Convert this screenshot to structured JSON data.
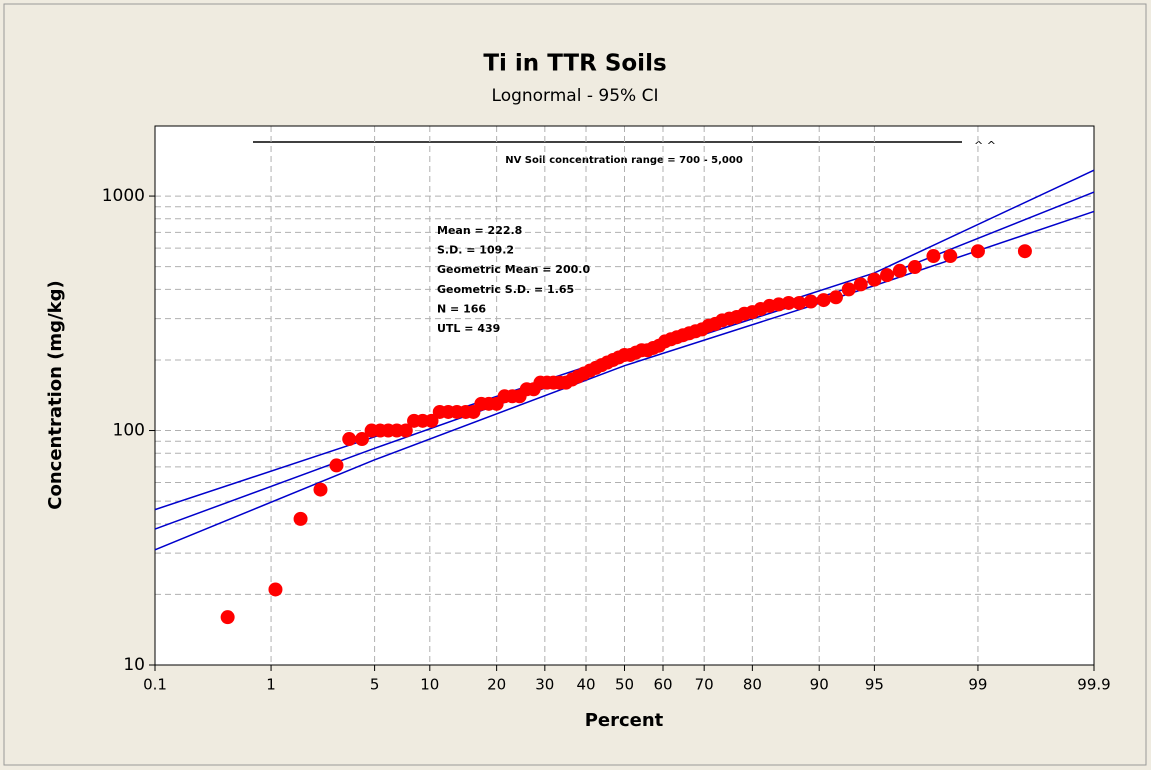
{
  "chart_data": {
    "type": "probability",
    "title": "Ti  in TTR Soils",
    "subtitle": "Lognormal - 95% CI",
    "x_label": "Percent",
    "y_label": "Concentration (mg/kg)",
    "xlim": [
      0.1,
      99.9
    ],
    "xticks": [
      0.1,
      1,
      5,
      10,
      20,
      30,
      40,
      50,
      60,
      70,
      80,
      90,
      95,
      99,
      99.9
    ],
    "ylim": [
      10,
      1990
    ],
    "log_y": true,
    "yticks": [
      10,
      100,
      1000
    ],
    "yminorticks": [
      20,
      30,
      40,
      50,
      60,
      70,
      80,
      90,
      200,
      300,
      400,
      500,
      600,
      700,
      800,
      900
    ],
    "grid": true,
    "points": {
      "color": "#ff0000",
      "x": [
        0.45,
        1.08,
        1.65,
        2.27,
        2.9,
        3.5,
        4.2,
        4.8,
        5.4,
        6.0,
        6.7,
        7.5,
        8.3,
        9.2,
        10.2,
        11.2,
        12.3,
        13.5,
        14.8,
        16.0,
        17.3,
        18.6,
        20.0,
        21.5,
        23.0,
        24.5,
        26.0,
        27.5,
        29.0,
        30.5,
        32.0,
        33.5,
        35.0,
        36.5,
        38.0,
        39.5,
        41.0,
        42.5,
        44.0,
        45.5,
        47.0,
        48.5,
        50.0,
        51.5,
        53.0,
        54.5,
        56.0,
        57.5,
        59.0,
        60.5,
        62.0,
        63.5,
        65.0,
        66.5,
        68.0,
        69.5,
        71.0,
        72.5,
        74.0,
        75.5,
        77.0,
        78.5,
        80.0,
        81.5,
        83.0,
        84.5,
        86.0,
        87.5,
        89.0,
        90.5,
        91.8,
        93.0,
        94.0,
        95.0,
        95.8,
        96.5,
        97.2,
        97.9,
        98.4,
        99.0,
        99.58
      ],
      "values": [
        16,
        21,
        42,
        56,
        71,
        92,
        92,
        100,
        100,
        100,
        100,
        100,
        110,
        110,
        110,
        120,
        120,
        120,
        120,
        120,
        130,
        130,
        130,
        140,
        140,
        140,
        150,
        150,
        160,
        160,
        160,
        160,
        160,
        165,
        170,
        175,
        180,
        185,
        190,
        195,
        200,
        205,
        210,
        210,
        215,
        220,
        220,
        225,
        230,
        240,
        245,
        250,
        255,
        260,
        265,
        270,
        280,
        285,
        295,
        300,
        305,
        315,
        320,
        330,
        340,
        345,
        350,
        350,
        355,
        360,
        370,
        400,
        420,
        440,
        460,
        480,
        498,
        555,
        555,
        582,
        582
      ]
    },
    "fit_lines": [
      {
        "color": "#0000cc",
        "x": [
          0.1,
          5,
          50,
          95,
          99.9
        ],
        "values": [
          46,
          94,
          212,
          470,
          1290
        ]
      },
      {
        "color": "#0000cc",
        "x": [
          0.1,
          5,
          50,
          95,
          99.9
        ],
        "values": [
          38,
          84,
          200,
          440,
          1040
        ]
      },
      {
        "color": "#0000cc",
        "x": [
          0.1,
          5,
          50,
          95,
          99.9
        ],
        "values": [
          31,
          75,
          189,
          415,
          860
        ]
      }
    ],
    "annotations": {
      "range": "NV Soil concentration range = 700 - 5,000",
      "caret": "^ ^",
      "stats": [
        "Mean = 222.8",
        "S.D. = 109.2",
        "Geometric Mean = 200.0",
        "Geometric S.D. = 1.65",
        "N = 166",
        "UTL = 439"
      ]
    }
  }
}
